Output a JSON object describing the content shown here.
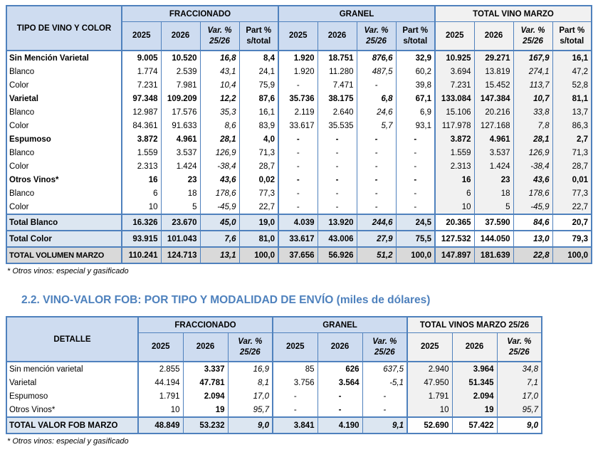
{
  "section_title": "2.2. VINO-VALOR FOB: POR TIPO Y MODALIDAD DE ENVÍO (miles de dólares)",
  "table1": {
    "corner_label": "TIPO DE VINO Y COLOR",
    "groups": [
      {
        "label": "FRACCIONADO",
        "columns": [
          "2025",
          "2026",
          "Var. %\n25/26",
          "Part %\ns/total"
        ]
      },
      {
        "label": "GRANEL",
        "columns": [
          "2025",
          "2026",
          "Var. %\n25/26",
          "Part %\ns/total"
        ]
      },
      {
        "label": "TOTAL VINO MARZO",
        "columns": [
          "2025",
          "2026",
          "Var. %\n25/26",
          "Part %\ns/total"
        ]
      }
    ],
    "rows": [
      {
        "label": "Sin Mención Varietal",
        "type": "category",
        "cells": [
          "9.005",
          "10.520",
          "16,8",
          "8,4",
          "1.920",
          "18.751",
          "876,6",
          "32,9",
          "10.925",
          "29.271",
          "167,9",
          "16,1"
        ]
      },
      {
        "label": "Blanco",
        "type": "sub",
        "cells": [
          "1.774",
          "2.539",
          "43,1",
          "24,1",
          "1.920",
          "11.280",
          "487,5",
          "60,2",
          "3.694",
          "13.819",
          "274,1",
          "47,2"
        ]
      },
      {
        "label": "Color",
        "type": "sub",
        "cells": [
          "7.231",
          "7.981",
          "10,4",
          "75,9",
          "-",
          "7.471",
          "-",
          "39,8",
          "7.231",
          "15.452",
          "113,7",
          "52,8"
        ]
      },
      {
        "label": "Varietal",
        "type": "category",
        "cells": [
          "97.348",
          "109.209",
          "12,2",
          "87,6",
          "35.736",
          "38.175",
          "6,8",
          "67,1",
          "133.084",
          "147.384",
          "10,7",
          "81,1"
        ]
      },
      {
        "label": "Blanco",
        "type": "sub",
        "cells": [
          "12.987",
          "17.576",
          "35,3",
          "16,1",
          "2.119",
          "2.640",
          "24,6",
          "6,9",
          "15.106",
          "20.216",
          "33,8",
          "13,7"
        ]
      },
      {
        "label": "Color",
        "type": "sub",
        "cells": [
          "84.361",
          "91.633",
          "8,6",
          "83,9",
          "33.617",
          "35.535",
          "5,7",
          "93,1",
          "117.978",
          "127.168",
          "7,8",
          "86,3"
        ]
      },
      {
        "label": "Espumoso",
        "type": "category",
        "cells": [
          "3.872",
          "4.961",
          "28,1",
          "4,0",
          "-",
          "-",
          "-",
          "-",
          "3.872",
          "4.961",
          "28,1",
          "2,7"
        ]
      },
      {
        "label": "Blanco",
        "type": "sub",
        "cells": [
          "1.559",
          "3.537",
          "126,9",
          "71,3",
          "-",
          "-",
          "-",
          "-",
          "1.559",
          "3.537",
          "126,9",
          "71,3"
        ]
      },
      {
        "label": "Color",
        "type": "sub",
        "cells": [
          "2.313",
          "1.424",
          "-38,4",
          "28,7",
          "-",
          "-",
          "-",
          "-",
          "2.313",
          "1.424",
          "-38,4",
          "28,7"
        ]
      },
      {
        "label": "Otros Vinos*",
        "type": "category",
        "cells": [
          "16",
          "23",
          "43,6",
          "0,02",
          "-",
          "-",
          "-",
          "-",
          "16",
          "23",
          "43,6",
          "0,01"
        ]
      },
      {
        "label": "Blanco",
        "type": "sub",
        "cells": [
          "6",
          "18",
          "178,6",
          "77,3",
          "-",
          "-",
          "-",
          "-",
          "6",
          "18",
          "178,6",
          "77,3"
        ]
      },
      {
        "label": "Color",
        "type": "sub",
        "cells": [
          "10",
          "5",
          "-45,9",
          "22,7",
          "-",
          "-",
          "-",
          "-",
          "10",
          "5",
          "-45,9",
          "22,7"
        ]
      },
      {
        "label": "Total Blanco",
        "type": "total",
        "cells": [
          "16.326",
          "23.670",
          "45,0",
          "19,0",
          "4.039",
          "13.920",
          "244,6",
          "24,5",
          "20.365",
          "37.590",
          "84,6",
          "20,7"
        ]
      },
      {
        "label": "Total Color",
        "type": "total",
        "cells": [
          "93.915",
          "101.043",
          "7,6",
          "81,0",
          "33.617",
          "43.006",
          "27,9",
          "75,5",
          "127.532",
          "144.050",
          "13,0",
          "79,3"
        ]
      },
      {
        "label": "TOTAL VOLUMEN MARZO",
        "type": "grandtotal",
        "cells": [
          "110.241",
          "124.713",
          "13,1",
          "100,0",
          "37.656",
          "56.926",
          "51,2",
          "100,0",
          "147.897",
          "181.639",
          "22,8",
          "100,0"
        ]
      }
    ],
    "footnote": "* Otros vinos: especial y gasificado"
  },
  "table2": {
    "corner_label": "DETALLE",
    "groups": [
      {
        "label": "FRACCIONADO",
        "columns": [
          "2025",
          "2026",
          "Var. %\n25/26"
        ]
      },
      {
        "label": "GRANEL",
        "columns": [
          "2025",
          "2026",
          "Var. %\n25/26"
        ]
      },
      {
        "label": "TOTAL VINOS MARZO 25/26",
        "columns": [
          "2025",
          "2026",
          "Var. %\n25/26"
        ]
      }
    ],
    "rows": [
      {
        "label": "Sin mención varietal",
        "type": "sub",
        "cells": [
          "2.855",
          "3.337",
          "16,9",
          "85",
          "626",
          "637,5",
          "2.940",
          "3.964",
          "34,8"
        ]
      },
      {
        "label": "Varietal",
        "type": "sub",
        "cells": [
          "44.194",
          "47.781",
          "8,1",
          "3.756",
          "3.564",
          "-5,1",
          "47.950",
          "51.345",
          "7,1"
        ]
      },
      {
        "label": "Espumoso",
        "type": "sub",
        "cells": [
          "1.791",
          "2.094",
          "17,0",
          "-",
          "-",
          "-",
          "1.791",
          "2.094",
          "17,0"
        ]
      },
      {
        "label": "Otros Vinos*",
        "type": "sub",
        "cells": [
          "10",
          "19",
          "95,7",
          "-",
          "-",
          "-",
          "10",
          "19",
          "95,7"
        ]
      },
      {
        "label": "TOTAL VALOR FOB MARZO",
        "type": "total",
        "cells": [
          "48.849",
          "53.232",
          "9,0",
          "3.841",
          "4.190",
          "9,1",
          "52.690",
          "57.422",
          "9,0"
        ]
      }
    ],
    "footnote": "* Otros vinos: especial y gasificado"
  }
}
